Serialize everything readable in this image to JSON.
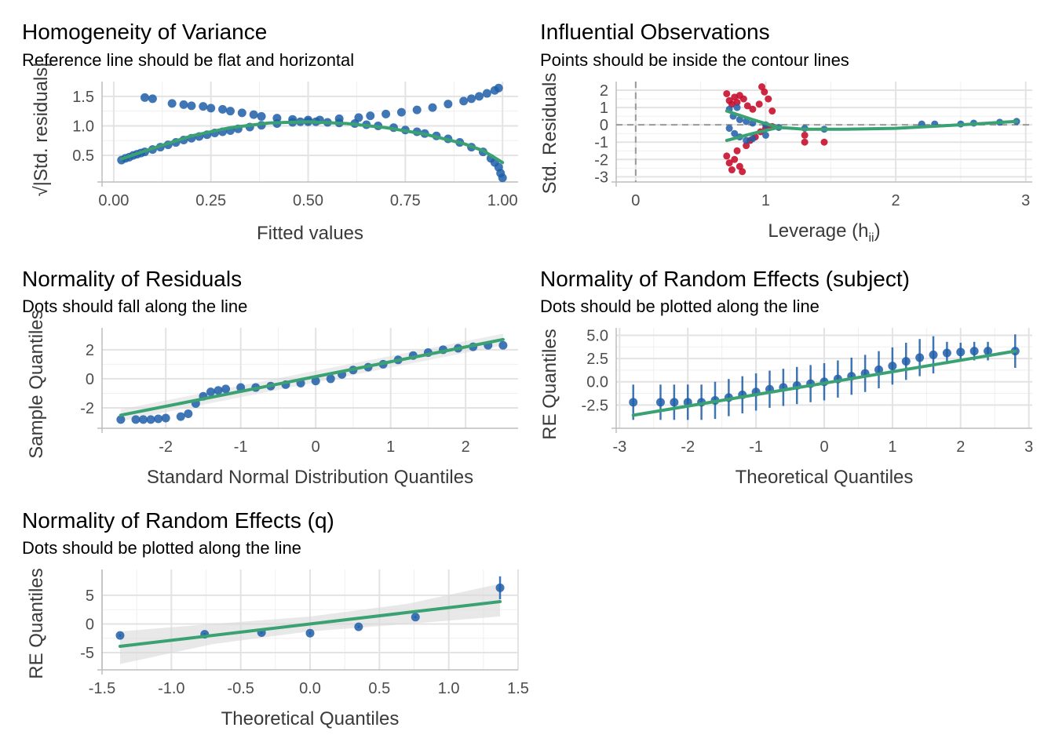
{
  "colors": {
    "points": "#1f5ea8",
    "line": "#3aa272",
    "influential": "#c8102e",
    "grid": "#e3e3e3",
    "ref": "#999999",
    "band": "#d9d9d9"
  },
  "chart_data": [
    {
      "id": "hv",
      "type": "scatter",
      "title": "Homogeneity of Variance",
      "subtitle": "Reference line should be flat and horizontal",
      "xlabel": "Fitted values",
      "ylabel": "√|Std. residuals|",
      "xlim": [
        -0.03,
        1.04
      ],
      "ylim": [
        0.05,
        1.75
      ],
      "xticks": [
        "0.00",
        "0.25",
        "0.50",
        "0.75",
        "1.00"
      ],
      "xtick_values": [
        0,
        0.25,
        0.5,
        0.75,
        1
      ],
      "yticks": [
        "0.5",
        "1.0",
        "1.5"
      ],
      "ytick_values": [
        0.5,
        1.0,
        1.5
      ],
      "points": [
        [
          0.02,
          0.42
        ],
        [
          0.03,
          0.45
        ],
        [
          0.04,
          0.47
        ],
        [
          0.05,
          0.5
        ],
        [
          0.06,
          0.52
        ],
        [
          0.07,
          0.54
        ],
        [
          0.08,
          0.56
        ],
        [
          0.1,
          0.6
        ],
        [
          0.12,
          0.64
        ],
        [
          0.14,
          0.68
        ],
        [
          0.16,
          0.72
        ],
        [
          0.18,
          0.76
        ],
        [
          0.2,
          0.79
        ],
        [
          0.22,
          0.82
        ],
        [
          0.24,
          0.85
        ],
        [
          0.26,
          0.88
        ],
        [
          0.28,
          0.9
        ],
        [
          0.3,
          0.92
        ],
        [
          0.32,
          0.95
        ],
        [
          0.35,
          0.98
        ],
        [
          0.38,
          1.01
        ],
        [
          0.42,
          1.04
        ],
        [
          0.46,
          1.06
        ],
        [
          0.48,
          1.07
        ],
        [
          0.5,
          1.07
        ],
        [
          0.52,
          1.07
        ],
        [
          0.55,
          1.06
        ],
        [
          0.58,
          1.05
        ],
        [
          0.62,
          1.04
        ],
        [
          0.65,
          1.02
        ],
        [
          0.68,
          1.0
        ],
        [
          0.72,
          0.97
        ],
        [
          0.75,
          0.93
        ],
        [
          0.78,
          0.9
        ],
        [
          0.8,
          0.87
        ],
        [
          0.83,
          0.83
        ],
        [
          0.86,
          0.78
        ],
        [
          0.89,
          0.72
        ],
        [
          0.92,
          0.64
        ],
        [
          0.95,
          0.56
        ],
        [
          0.97,
          0.45
        ],
        [
          0.98,
          0.38
        ],
        [
          0.99,
          0.3
        ],
        [
          0.995,
          0.2
        ],
        [
          1.0,
          0.12
        ],
        [
          0.08,
          1.48
        ],
        [
          0.1,
          1.46
        ],
        [
          0.15,
          1.38
        ],
        [
          0.18,
          1.36
        ],
        [
          0.2,
          1.34
        ],
        [
          0.23,
          1.33
        ],
        [
          0.25,
          1.3
        ],
        [
          0.28,
          1.28
        ],
        [
          0.3,
          1.25
        ],
        [
          0.33,
          1.22
        ],
        [
          0.36,
          1.19
        ],
        [
          0.38,
          1.16
        ],
        [
          0.42,
          1.13
        ],
        [
          0.46,
          1.11
        ],
        [
          0.5,
          1.1
        ],
        [
          0.53,
          1.1
        ],
        [
          0.58,
          1.12
        ],
        [
          0.63,
          1.14
        ],
        [
          0.66,
          1.17
        ],
        [
          0.7,
          1.2
        ],
        [
          0.74,
          1.23
        ],
        [
          0.78,
          1.27
        ],
        [
          0.82,
          1.31
        ],
        [
          0.86,
          1.37
        ],
        [
          0.9,
          1.42
        ],
        [
          0.92,
          1.46
        ],
        [
          0.94,
          1.5
        ],
        [
          0.96,
          1.55
        ],
        [
          0.98,
          1.6
        ],
        [
          0.99,
          1.64
        ]
      ],
      "smooth": [
        [
          0.02,
          0.44
        ],
        [
          0.1,
          0.62
        ],
        [
          0.2,
          0.83
        ],
        [
          0.3,
          0.97
        ],
        [
          0.4,
          1.05
        ],
        [
          0.5,
          1.07
        ],
        [
          0.6,
          1.04
        ],
        [
          0.7,
          0.97
        ],
        [
          0.8,
          0.86
        ],
        [
          0.9,
          0.7
        ],
        [
          0.95,
          0.58
        ],
        [
          1.0,
          0.38
        ]
      ]
    },
    {
      "id": "io",
      "type": "scatter",
      "title": "Influential Observations",
      "subtitle": "Points should be inside the contour lines",
      "xlabel": "Leverage (h",
      "xlabel_sub": "ii",
      "xlabel_end": ")",
      "ylabel": "Std. Residuals",
      "xlim": [
        -0.15,
        3.05
      ],
      "ylim": [
        -3.3,
        2.5
      ],
      "xticks": [
        "0",
        "1",
        "2",
        "3"
      ],
      "xtick_values": [
        0,
        1,
        2,
        3
      ],
      "yticks": [
        "-3",
        "-2",
        "-1",
        "0",
        "1",
        "2"
      ],
      "ytick_values": [
        -3,
        -2,
        -1,
        0,
        1,
        2
      ],
      "points": [
        [
          0.72,
          0.9
        ],
        [
          0.75,
          0.5
        ],
        [
          0.78,
          1.0
        ],
        [
          0.8,
          0.3
        ],
        [
          0.85,
          0.2
        ],
        [
          0.9,
          0.1
        ],
        [
          1.0,
          0.0
        ],
        [
          1.1,
          -0.15
        ],
        [
          1.3,
          -0.2
        ],
        [
          1.45,
          -0.25
        ],
        [
          2.2,
          0.05
        ],
        [
          2.3,
          0.05
        ],
        [
          2.5,
          0.05
        ],
        [
          2.6,
          0.1
        ],
        [
          2.8,
          0.15
        ],
        [
          2.93,
          0.2
        ],
        [
          0.72,
          -0.2
        ],
        [
          0.76,
          -0.5
        ],
        [
          0.8,
          -0.7
        ],
        [
          0.85,
          -0.9
        ],
        [
          0.9,
          -0.8
        ],
        [
          1.0,
          -0.6
        ]
      ],
      "influential": [
        [
          0.7,
          1.8
        ],
        [
          0.72,
          1.4
        ],
        [
          0.74,
          1.2
        ],
        [
          0.76,
          1.6
        ],
        [
          0.78,
          1.3
        ],
        [
          0.8,
          1.7
        ],
        [
          0.83,
          1.5
        ],
        [
          0.86,
          1.1
        ],
        [
          0.9,
          0.9
        ],
        [
          0.95,
          1.2
        ],
        [
          0.97,
          2.2
        ],
        [
          0.99,
          1.9
        ],
        [
          1.02,
          1.5
        ],
        [
          1.05,
          0.8
        ],
        [
          0.7,
          -1.8
        ],
        [
          0.72,
          -2.2
        ],
        [
          0.74,
          -2.6
        ],
        [
          0.76,
          -2.0
        ],
        [
          0.78,
          -1.5
        ],
        [
          0.8,
          -2.4
        ],
        [
          0.82,
          -2.7
        ],
        [
          0.85,
          -1.2
        ],
        [
          0.88,
          -0.9
        ],
        [
          0.92,
          -0.7
        ],
        [
          0.96,
          -0.4
        ],
        [
          1.0,
          -0.2
        ],
        [
          1.05,
          -0.1
        ],
        [
          1.3,
          -0.6
        ],
        [
          1.3,
          -1.0
        ],
        [
          1.45,
          -1.0
        ]
      ],
      "smooth": [
        [
          0.7,
          0.8
        ],
        [
          0.9,
          0.3
        ],
        [
          1.1,
          -0.15
        ],
        [
          1.3,
          -0.25
        ],
        [
          1.6,
          -0.25
        ],
        [
          2.0,
          -0.2
        ],
        [
          2.5,
          0.0
        ],
        [
          2.93,
          0.2
        ]
      ],
      "smooth2": [
        [
          0.7,
          -0.9
        ],
        [
          0.9,
          -0.5
        ],
        [
          1.1,
          -0.15
        ]
      ]
    },
    {
      "id": "nr",
      "type": "scatter",
      "title": "Normality of Residuals",
      "subtitle": "Dots should fall along the line",
      "xlabel": "Standard Normal Distribution Quantiles",
      "ylabel": "Sample Quantiles",
      "xlim": [
        -2.85,
        2.7
      ],
      "ylim": [
        -3.4,
        3.5
      ],
      "xticks": [
        "-2",
        "-1",
        "0",
        "1",
        "2"
      ],
      "xtick_values": [
        -2,
        -1,
        0,
        1,
        2
      ],
      "yticks": [
        "-2",
        "0",
        "2"
      ],
      "ytick_values": [
        -2,
        0,
        2
      ],
      "points": [
        [
          -2.6,
          -2.8
        ],
        [
          -2.4,
          -2.8
        ],
        [
          -2.3,
          -2.8
        ],
        [
          -2.2,
          -2.8
        ],
        [
          -2.1,
          -2.75
        ],
        [
          -2.0,
          -2.7
        ],
        [
          -1.8,
          -2.6
        ],
        [
          -1.7,
          -2.4
        ],
        [
          -1.6,
          -1.7
        ],
        [
          -1.5,
          -1.2
        ],
        [
          -1.4,
          -0.9
        ],
        [
          -1.3,
          -0.8
        ],
        [
          -1.2,
          -0.7
        ],
        [
          -1.0,
          -0.6
        ],
        [
          -0.8,
          -0.6
        ],
        [
          -0.6,
          -0.5
        ],
        [
          -0.4,
          -0.4
        ],
        [
          -0.2,
          -0.3
        ],
        [
          0.0,
          -0.15
        ],
        [
          0.2,
          0.0
        ],
        [
          0.35,
          0.3
        ],
        [
          0.5,
          0.6
        ],
        [
          0.7,
          0.8
        ],
        [
          0.9,
          1.0
        ],
        [
          1.1,
          1.3
        ],
        [
          1.3,
          1.6
        ],
        [
          1.5,
          1.8
        ],
        [
          1.7,
          2.0
        ],
        [
          1.9,
          2.1
        ],
        [
          2.1,
          2.2
        ],
        [
          2.3,
          2.3
        ],
        [
          2.5,
          2.3
        ]
      ],
      "smooth": [
        [
          -2.6,
          -2.5
        ],
        [
          2.5,
          2.7
        ]
      ]
    },
    {
      "id": "res",
      "type": "scatter",
      "title": "Normality of Random Effects (subject)",
      "subtitle": "Dots should be plotted along the line",
      "xlabel": "Theoretical Quantiles",
      "ylabel": "RE Quantiles",
      "xlim": [
        -3.05,
        3.05
      ],
      "ylim": [
        -5.0,
        5.8
      ],
      "xticks": [
        "-3",
        "-2",
        "-1",
        "0",
        "1",
        "2",
        "3"
      ],
      "xtick_values": [
        -3,
        -2,
        -1,
        0,
        1,
        2,
        3
      ],
      "yticks": [
        "-2.5",
        "0.0",
        "2.5",
        "5.0"
      ],
      "ytick_values": [
        -2.5,
        0,
        2.5,
        5
      ],
      "points": [
        [
          -2.8,
          -2.2
        ],
        [
          -2.4,
          -2.2
        ],
        [
          -2.2,
          -2.2
        ],
        [
          -2.0,
          -2.2
        ],
        [
          -1.8,
          -2.2
        ],
        [
          -1.6,
          -2.0
        ],
        [
          -1.4,
          -1.7
        ],
        [
          -1.2,
          -1.4
        ],
        [
          -1.0,
          -1.1
        ],
        [
          -0.8,
          -0.8
        ],
        [
          -0.6,
          -0.6
        ],
        [
          -0.4,
          -0.4
        ],
        [
          -0.2,
          -0.2
        ],
        [
          0.0,
          0.0
        ],
        [
          0.2,
          0.3
        ],
        [
          0.4,
          0.6
        ],
        [
          0.6,
          0.9
        ],
        [
          0.8,
          1.3
        ],
        [
          1.0,
          1.7
        ],
        [
          1.2,
          2.2
        ],
        [
          1.4,
          2.6
        ],
        [
          1.6,
          2.9
        ],
        [
          1.8,
          3.1
        ],
        [
          2.0,
          3.2
        ],
        [
          2.2,
          3.3
        ],
        [
          2.4,
          3.3
        ],
        [
          2.8,
          3.3
        ]
      ],
      "errors": [
        1.9,
        1.9,
        1.9,
        1.9,
        1.9,
        2.0,
        2.0,
        2.0,
        2.0,
        2.0,
        2.0,
        2.0,
        2.0,
        2.0,
        2.0,
        2.0,
        2.0,
        2.0,
        2.0,
        2.0,
        2.0,
        2.0,
        1.2,
        1.0,
        1.0,
        1.0,
        1.8
      ],
      "smooth": [
        [
          -2.8,
          -3.6
        ],
        [
          2.8,
          3.3
        ]
      ]
    },
    {
      "id": "req",
      "type": "scatter",
      "title": "Normality of Random Effects (q)",
      "subtitle": "Dots should be plotted along the line",
      "xlabel": "Theoretical Quantiles",
      "ylabel": "RE Quantiles",
      "xlim": [
        -1.5,
        1.5
      ],
      "ylim": [
        -8,
        9.5
      ],
      "xticks": [
        "-1.5",
        "-1.0",
        "-0.5",
        "0.0",
        "0.5",
        "1.0",
        "1.5"
      ],
      "xtick_values": [
        -1.5,
        -1.0,
        -0.5,
        0.0,
        0.5,
        1.0,
        1.5
      ],
      "yticks": [
        "-5",
        "0",
        "5"
      ],
      "ytick_values": [
        -5,
        0,
        5
      ],
      "points": [
        [
          -1.37,
          -2.0
        ],
        [
          -0.76,
          -1.8
        ],
        [
          -0.35,
          -1.5
        ],
        [
          0.0,
          -1.6
        ],
        [
          0.35,
          -0.5
        ],
        [
          0.76,
          1.2
        ],
        [
          1.37,
          6.3
        ]
      ],
      "errors": [
        0.2,
        0.2,
        0.2,
        0.2,
        0.2,
        0.2,
        2.0
      ],
      "smooth": [
        [
          -1.37,
          -3.9
        ],
        [
          1.37,
          3.9
        ]
      ],
      "band": [
        [
          -1.37,
          -1.3,
          -7.0
        ],
        [
          -0.7,
          0.0,
          -3.5
        ],
        [
          0.0,
          1.3,
          -1.3
        ],
        [
          0.7,
          3.5,
          0.0
        ],
        [
          1.37,
          7.0,
          1.3
        ]
      ]
    }
  ]
}
